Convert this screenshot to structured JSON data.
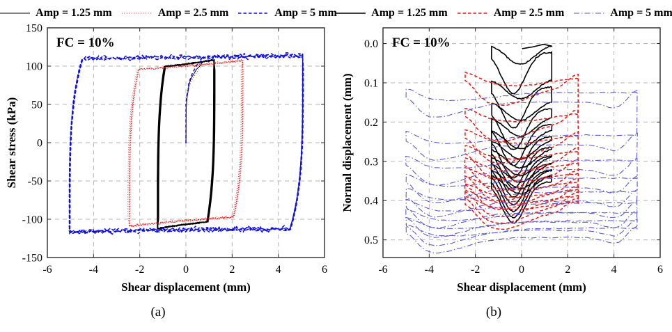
{
  "figure": {
    "sublabels": [
      "(a)",
      "(b)"
    ],
    "background": "#ffffff",
    "text_color": "#000000",
    "grid_color": "#b5b5b5",
    "axis_color": "#2a2a2a"
  },
  "chart_data": [
    {
      "id": "a",
      "type": "line",
      "model": "hysteresis_stress",
      "annotation": "FC = 10%",
      "xlabel": "Shear displacement (mm)",
      "ylabel": "Shear stress (kPa)",
      "xlim": [
        -6,
        6
      ],
      "ylim": [
        -150,
        150
      ],
      "grid": true,
      "legend_position": "top",
      "xtick_values": [
        -6,
        -4,
        -2,
        0,
        2,
        4,
        6
      ],
      "xtick_labels": [
        "-6",
        "-4",
        "-2",
        "0",
        "2",
        "4",
        "6"
      ],
      "ytick_values": [
        -150,
        -100,
        -50,
        0,
        50,
        100,
        150
      ],
      "ytick_labels": [
        "-150",
        "-100",
        "-50",
        "0",
        "50",
        "100",
        "150"
      ],
      "series": [
        {
          "name": "Amp = 1.25 mm",
          "color": "#000000",
          "style": "solid",
          "line_width": 1.0,
          "amplitude": 1.22,
          "peak_stress": 108,
          "min_stress": -112,
          "tilt": 9,
          "rise_width": 0.3,
          "cycles": 7,
          "noise": 0.9
        },
        {
          "name": "Amp = 2.5 mm",
          "color": "#ee1111",
          "style": "dotted",
          "line_width": 0.9,
          "amplitude": 2.45,
          "peak_stress": 107,
          "min_stress": -109,
          "tilt": 12,
          "rise_width": 0.4,
          "cycles": 5,
          "noise": 1.6
        },
        {
          "name": "Amp = 5 mm",
          "color": "#0d0de4",
          "style": "dashed",
          "line_width": 1.5,
          "amplitude": 5.05,
          "peak_stress": 113,
          "min_stress": -117,
          "tilt": 4,
          "rise_width": 0.55,
          "cycles": 4,
          "noise": 3.2
        }
      ]
    },
    {
      "id": "b",
      "type": "line",
      "model": "settlement_loops",
      "annotation": "FC = 10%",
      "xlabel": "Shear displacement (mm)",
      "ylabel": "Normal displacement (mm)",
      "xlim": [
        -6,
        6
      ],
      "ylim": [
        -0.04,
        0.545
      ],
      "y_inverted": true,
      "grid": true,
      "legend_position": "top",
      "xtick_values": [
        -6,
        -4,
        -2,
        0,
        2,
        4,
        6
      ],
      "xtick_labels": [
        "-6",
        "-4",
        "-2",
        "0",
        "2",
        "4",
        "6"
      ],
      "ytick_values": [
        0,
        0.1,
        0.2,
        0.3,
        0.4,
        0.5
      ],
      "ytick_labels": [
        "0.0",
        "0.1",
        "0.2",
        "0.3",
        "0.4",
        "0.5"
      ],
      "series": [
        {
          "name": "Amp = 1.25 mm",
          "color": "#000000",
          "style": "solid",
          "line_width": 1.6,
          "amplitude": 1.3,
          "start_depth": 0.0,
          "end_depth": 0.33,
          "cycles": 11,
          "dip": 0.105,
          "dip_x": -0.35,
          "dip_w": 0.5,
          "loop_gap": 0.022,
          "end_rise": 0,
          "initial": true
        },
        {
          "name": "Amp = 2.5 mm",
          "color": "#e81414",
          "style": "dashed",
          "line_width": 1.5,
          "amplitude": 2.45,
          "start_depth": 0.085,
          "end_depth": 0.4,
          "cycles": 10,
          "dip": 0.045,
          "dip_x": -0.9,
          "dip_w": 1.1,
          "loop_gap": 0.028,
          "end_rise": 0.035
        },
        {
          "name": "Amp = 5 mm",
          "color": "#5a5ad8",
          "style": "dashdot",
          "line_width": 1.1,
          "amplitude": 5.0,
          "start_depth": 0.125,
          "end_depth": 0.47,
          "cycles": 9,
          "dip": 0.04,
          "dip_x": -3.9,
          "dip_w": 1.4,
          "loop_gap": 0.024,
          "end_rise": 0.04,
          "dip2": 0.02,
          "dip2_x": 4.3,
          "dip2_w": 0.6
        }
      ]
    }
  ]
}
